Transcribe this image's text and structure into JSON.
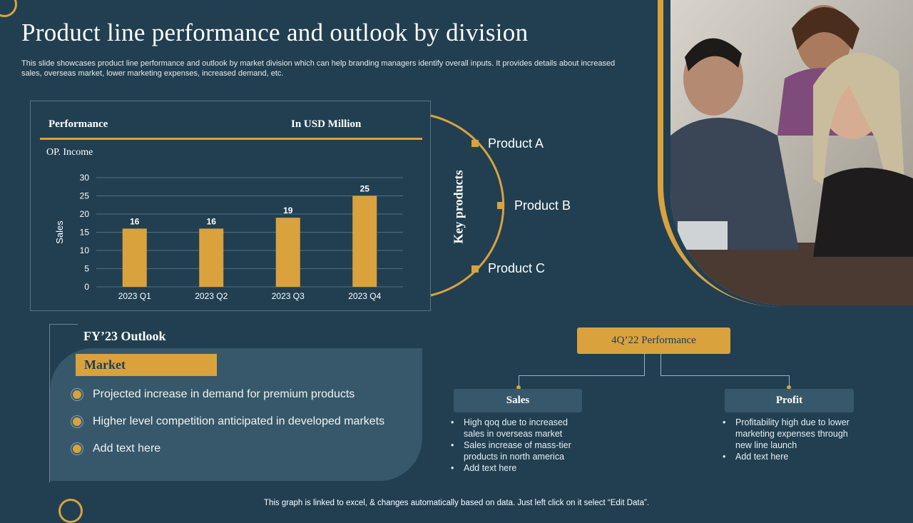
{
  "slide": {
    "title": "Product line performance and outlook by division",
    "subtitle": "This slide showcases product line performance and outlook by market division which can help branding managers identify overall inputs. It provides details about increased sales, overseas market, lower marketing expenses, increased demand, etc.",
    "footer": "This graph is linked to excel, & changes automatically based on data. Just left click on it select “Edit Data”."
  },
  "chart_panel": {
    "performance_label": "Performance",
    "unit_label": "In USD Million"
  },
  "chart_data": {
    "type": "bar",
    "title": "OP. Income",
    "categories": [
      "2023 Q1",
      "2023 Q2",
      "2023 Q3",
      "2023 Q4"
    ],
    "values": [
      16,
      16,
      19,
      25
    ],
    "data_labels": [
      "16",
      "16",
      "19",
      "25"
    ],
    "xlabel": "",
    "ylabel": "Sales",
    "ylim": [
      0,
      30
    ],
    "yticks": [
      0,
      5,
      10,
      15,
      20,
      25,
      30
    ],
    "grid": true,
    "bar_color": "#d9a23d"
  },
  "key_products": {
    "label": "Key products",
    "items": [
      "Product A",
      "Product B",
      "Product C"
    ]
  },
  "outlook": {
    "title": "FY’23 Outlook",
    "badge": "Market",
    "items": [
      "Projected increase in demand for premium products",
      "Higher level competition anticipated in developed markets",
      "Add text here"
    ]
  },
  "q4_performance": {
    "title": "4Q’22 Performance",
    "sales": {
      "title": "Sales",
      "items": [
        "High qoq due to increased sales in overseas market",
        "Sales increase of mass-tier products in north america",
        "Add text here"
      ]
    },
    "profit": {
      "title": "Profit",
      "items": [
        "Profitability high due to lower marketing expenses through new line launch",
        "Add text here"
      ]
    }
  },
  "colors": {
    "background": "#213f51",
    "accent": "#d9a23d",
    "panel": "#37586a"
  }
}
